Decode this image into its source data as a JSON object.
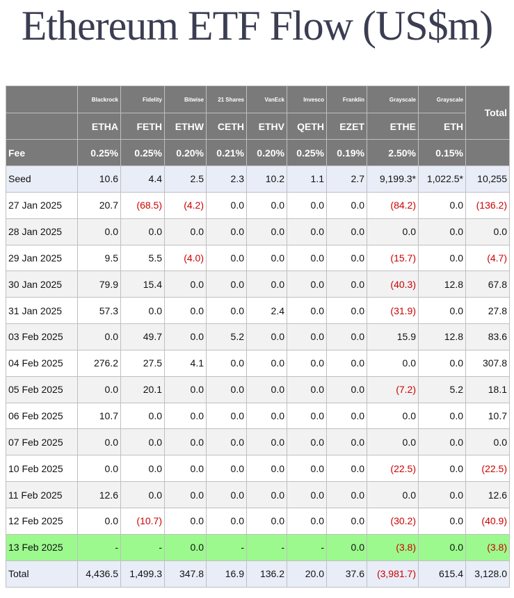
{
  "title": "Ethereum ETF Flow (US$m)",
  "header": {
    "total_label": "Total",
    "fee_label": "Fee",
    "issuers": [
      "Blackrock",
      "Fidelity",
      "Bitwise",
      "21 Shares",
      "VanEck",
      "Invesco",
      "Franklin",
      "Grayscale",
      "Grayscale"
    ],
    "tickers": [
      "ETHA",
      "FETH",
      "ETHW",
      "CETH",
      "ETHV",
      "QETH",
      "EZET",
      "ETHE",
      "ETH"
    ],
    "fees": [
      "0.25%",
      "0.25%",
      "0.20%",
      "0.21%",
      "0.20%",
      "0.25%",
      "0.19%",
      "2.50%",
      "0.15%"
    ]
  },
  "rows": [
    {
      "date": "Seed",
      "cells": [
        "10.6",
        "4.4",
        "2.5",
        "2.3",
        "10.2",
        "1.1",
        "2.7",
        "9,199.3*",
        "1,022.5*",
        "10,255"
      ]
    },
    {
      "date": "27 Jan 2025",
      "cells": [
        "20.7",
        "(68.5)",
        "(4.2)",
        "0.0",
        "0.0",
        "0.0",
        "0.0",
        "(84.2)",
        "0.0",
        "(136.2)"
      ]
    },
    {
      "date": "28 Jan 2025",
      "cells": [
        "0.0",
        "0.0",
        "0.0",
        "0.0",
        "0.0",
        "0.0",
        "0.0",
        "0.0",
        "0.0",
        "0.0"
      ]
    },
    {
      "date": "29 Jan 2025",
      "cells": [
        "9.5",
        "5.5",
        "(4.0)",
        "0.0",
        "0.0",
        "0.0",
        "0.0",
        "(15.7)",
        "0.0",
        "(4.7)"
      ]
    },
    {
      "date": "30 Jan 2025",
      "cells": [
        "79.9",
        "15.4",
        "0.0",
        "0.0",
        "0.0",
        "0.0",
        "0.0",
        "(40.3)",
        "12.8",
        "67.8"
      ]
    },
    {
      "date": "31 Jan 2025",
      "cells": [
        "57.3",
        "0.0",
        "0.0",
        "0.0",
        "2.4",
        "0.0",
        "0.0",
        "(31.9)",
        "0.0",
        "27.8"
      ]
    },
    {
      "date": "03 Feb 2025",
      "cells": [
        "0.0",
        "49.7",
        "0.0",
        "5.2",
        "0.0",
        "0.0",
        "0.0",
        "15.9",
        "12.8",
        "83.6"
      ]
    },
    {
      "date": "04 Feb 2025",
      "cells": [
        "276.2",
        "27.5",
        "4.1",
        "0.0",
        "0.0",
        "0.0",
        "0.0",
        "0.0",
        "0.0",
        "307.8"
      ]
    },
    {
      "date": "05 Feb 2025",
      "cells": [
        "0.0",
        "20.1",
        "0.0",
        "0.0",
        "0.0",
        "0.0",
        "0.0",
        "(7.2)",
        "5.2",
        "18.1"
      ]
    },
    {
      "date": "06 Feb 2025",
      "cells": [
        "10.7",
        "0.0",
        "0.0",
        "0.0",
        "0.0",
        "0.0",
        "0.0",
        "0.0",
        "0.0",
        "10.7"
      ]
    },
    {
      "date": "07 Feb 2025",
      "cells": [
        "0.0",
        "0.0",
        "0.0",
        "0.0",
        "0.0",
        "0.0",
        "0.0",
        "0.0",
        "0.0",
        "0.0"
      ]
    },
    {
      "date": "10 Feb 2025",
      "cells": [
        "0.0",
        "0.0",
        "0.0",
        "0.0",
        "0.0",
        "0.0",
        "0.0",
        "(22.5)",
        "0.0",
        "(22.5)"
      ]
    },
    {
      "date": "11 Feb 2025",
      "cells": [
        "12.6",
        "0.0",
        "0.0",
        "0.0",
        "0.0",
        "0.0",
        "0.0",
        "0.0",
        "0.0",
        "12.6"
      ]
    },
    {
      "date": "12 Feb 2025",
      "cells": [
        "0.0",
        "(10.7)",
        "0.0",
        "0.0",
        "0.0",
        "0.0",
        "0.0",
        "(30.2)",
        "0.0",
        "(40.9)"
      ]
    },
    {
      "date": "13 Feb 2025",
      "cells": [
        "-",
        "-",
        "0.0",
        "-",
        "-",
        "-",
        "0.0",
        "(3.8)",
        "0.0",
        "(3.8)"
      ]
    },
    {
      "date": "Total",
      "cells": [
        "4,436.5",
        "1,499.3",
        "347.8",
        "16.9",
        "136.2",
        "20.0",
        "37.6",
        "(3,981.7)",
        "615.4",
        "3,128.0"
      ]
    }
  ],
  "colors": {
    "header_bg": "#7a7a7a",
    "seed_total_bg": "#e8edf7",
    "highlight_bg": "#9cf98e",
    "stripe_bg": "#f2f2f2",
    "negative_text": "#cc0000",
    "title_text": "#3b3d52"
  }
}
